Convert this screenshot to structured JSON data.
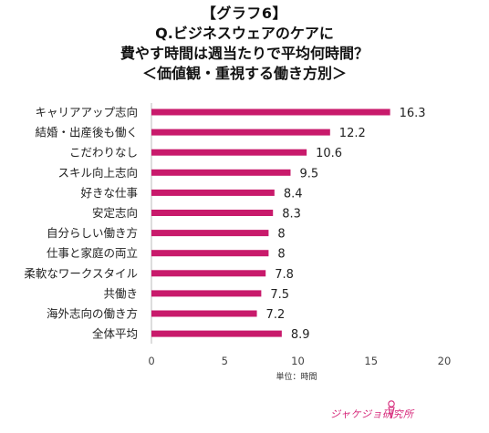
{
  "titles": {
    "line1": "【グラフ6】",
    "line2": "Q.ビジネスウェアのケアに",
    "line3": "費やす時間は週当たりで平均何時間？",
    "line4": "＜価値観・重視する働き方別＞"
  },
  "chart_data": {
    "type": "bar",
    "orientation": "horizontal",
    "categories": [
      "キャリアアップ志向",
      "結婚・出産後も働く",
      "こだわりなし",
      "スキル向上志向",
      "好きな仕事",
      "安定志向",
      "自分らしい働き方",
      "仕事と家庭の両立",
      "柔軟なワークスタイル",
      "共働き",
      "海外志向の働き方",
      "全体平均"
    ],
    "values": [
      16.3,
      12.2,
      10.6,
      9.5,
      8.4,
      8.3,
      8,
      8,
      7.8,
      7.5,
      7.2,
      8.9
    ],
    "value_labels": [
      "16.3",
      "12.2",
      "10.6",
      "9.5",
      "8.4",
      "8.3",
      "8",
      "8",
      "7.8",
      "7.5",
      "7.2",
      "8.9"
    ],
    "xlim": [
      0,
      20
    ],
    "xticks": [
      "0",
      "5",
      "10",
      "15",
      "20"
    ],
    "xlabel": "単位：時間",
    "bar_color": "#c81a6b",
    "grid": false
  },
  "logo": {
    "text": "ジャケジョ研究所"
  }
}
